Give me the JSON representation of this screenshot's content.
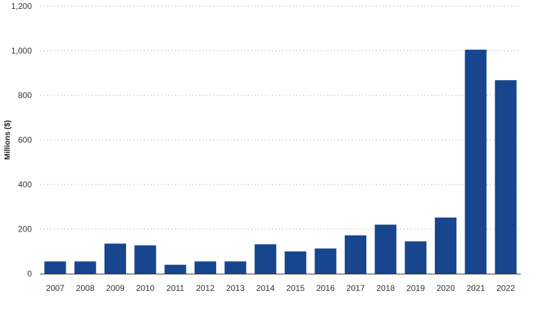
{
  "chart_data": {
    "type": "bar",
    "title": "",
    "xlabel": "",
    "ylabel": "Millions ($)",
    "categories": [
      "2007",
      "2008",
      "2009",
      "2010",
      "2011",
      "2012",
      "2013",
      "2014",
      "2015",
      "2016",
      "2017",
      "2018",
      "2019",
      "2020",
      "2021",
      "2022"
    ],
    "values": [
      55,
      55,
      135,
      127,
      40,
      55,
      55,
      132,
      100,
      113,
      172,
      220,
      145,
      252,
      1005,
      868
    ],
    "ylim": [
      0,
      1200
    ],
    "yticks": [
      0,
      200,
      400,
      600,
      800,
      1000,
      1200
    ],
    "ytick_labels": [
      "0",
      "200",
      "400",
      "600",
      "800",
      "1,000",
      "1,200"
    ],
    "grid": true,
    "bar_color": "#17468f",
    "grid_color": "#9a9a9a"
  }
}
